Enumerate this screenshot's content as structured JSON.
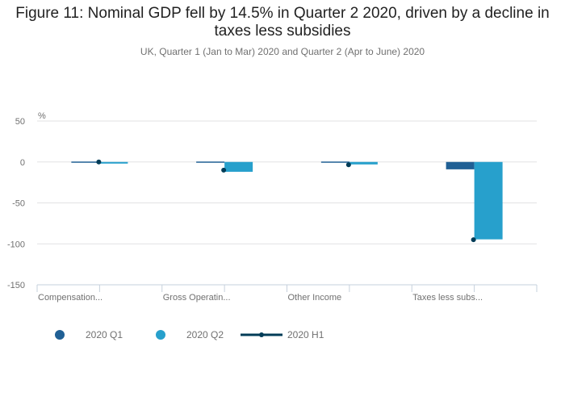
{
  "header": {
    "title": "Figure 11: Nominal GDP fell by 14.5% in Quarter 2 2020, driven by a decline in taxes less subsidies",
    "subtitle": "UK, Quarter 1 (Jan to Mar) 2020 and Quarter 2 (Apr to June) 2020"
  },
  "chart_data": {
    "type": "bar",
    "title": "Figure 11: Nominal GDP fell by 14.5% in Quarter 2 2020, driven by a decline in taxes less subsidies",
    "subtitle": "UK, Quarter 1 (Jan to Mar) 2020 and Quarter 2 (Apr to June) 2020",
    "ylabel": "%",
    "xlabel": "",
    "categories": [
      "Compensation...",
      "Gross Operatin...",
      "Other Income",
      "Taxes less subs..."
    ],
    "series": [
      {
        "name": "2020 Q1",
        "kind": "bar",
        "color": "#206095",
        "values": [
          -0.5,
          -0.8,
          0.0,
          -9.0
        ]
      },
      {
        "name": "2020 Q2",
        "kind": "bar",
        "color": "#27a0cc",
        "values": [
          -2.0,
          -12.0,
          -3.0,
          -94.5
        ]
      },
      {
        "name": "2020 H1",
        "kind": "marker",
        "color": "#003c57",
        "values": [
          0.0,
          -10.0,
          -3.5,
          -95.0
        ]
      }
    ],
    "ylim": [
      -150,
      50
    ],
    "yticks": [
      50,
      0,
      -50,
      -100,
      -150
    ],
    "grid": true,
    "legend_position": "bottom-left"
  }
}
